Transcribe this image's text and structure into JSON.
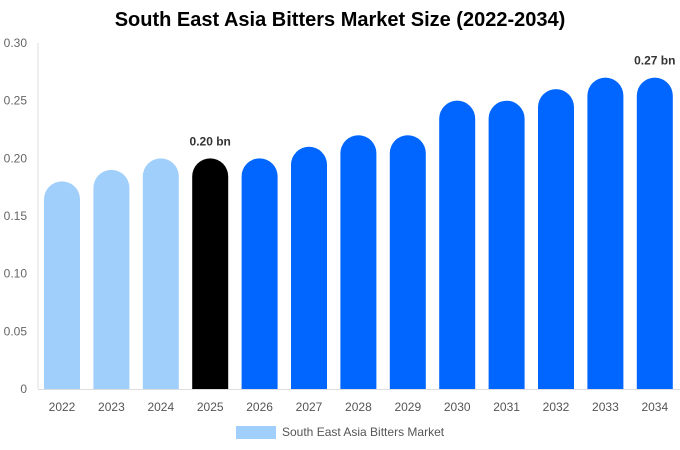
{
  "chart_data": {
    "type": "bar",
    "title": "South East Asia Bitters Market Size (2022-2034)",
    "categories": [
      "2022",
      "2023",
      "2024",
      "2025",
      "2026",
      "2027",
      "2028",
      "2029",
      "2030",
      "2031",
      "2032",
      "2033",
      "2034"
    ],
    "series": [
      {
        "name": "South East Asia Bitters Market",
        "values": [
          0.18,
          0.19,
          0.2,
          0.2,
          0.2,
          0.21,
          0.22,
          0.22,
          0.25,
          0.25,
          0.26,
          0.27,
          0.27
        ]
      }
    ],
    "bar_colors": [
      "#a0cffc",
      "#a0cffc",
      "#a0cffc",
      "#000000",
      "#0066ff",
      "#0066ff",
      "#0066ff",
      "#0066ff",
      "#0066ff",
      "#0066ff",
      "#0066ff",
      "#0066ff",
      "#0066ff"
    ],
    "ylim": [
      0,
      0.3
    ],
    "yticks": [
      "0",
      "0.05",
      "0.10",
      "0.15",
      "0.20",
      "0.25",
      "0.30"
    ],
    "annotations": [
      {
        "index": 3,
        "text": "0.20 bn"
      },
      {
        "index": 12,
        "text": "0.27 bn"
      }
    ],
    "legend": "bottom",
    "grid": false
  }
}
